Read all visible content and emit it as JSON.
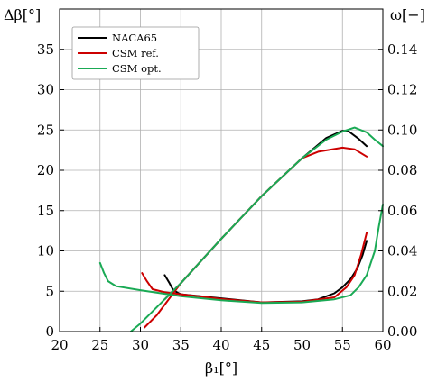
{
  "chart_data": {
    "type": "line",
    "xlabel": "β₁[°]",
    "ylabel_left": "Δβ[°]",
    "ylabel_right": "ω[−]",
    "xlim": [
      20,
      60
    ],
    "ylim_left": [
      0,
      40
    ],
    "ylim_right": [
      0,
      0.16
    ],
    "x_ticks": [
      "20",
      "25",
      "30",
      "35",
      "40",
      "45",
      "50",
      "55",
      "60"
    ],
    "y_ticks_left": [
      "0",
      "5",
      "10",
      "15",
      "20",
      "25",
      "30",
      "35"
    ],
    "y_ticks_right": [
      "0.00",
      "0.02",
      "0.04",
      "0.06",
      "0.08",
      "0.10",
      "0.12",
      "0.14"
    ],
    "grid": true,
    "legend_position": "top-left",
    "series": [
      {
        "name": "NACA65",
        "color": "#000000",
        "deflection": {
          "x": [
            33.0,
            35.0,
            40.0,
            45.0,
            50.0,
            53.0,
            55.0,
            55.8,
            57.0,
            58.0
          ],
          "y": [
            4.0,
            6.0,
            11.5,
            16.8,
            21.5,
            24.0,
            24.9,
            24.8,
            23.9,
            23.0
          ]
        },
        "loss": {
          "x": [
            33.0,
            33.6,
            34.0,
            34.5,
            35.0,
            40.0,
            45.0,
            50.0,
            52.0,
            54.0,
            55.0,
            56.0,
            56.8,
            57.5,
            58.0
          ],
          "y": [
            0.028,
            0.024,
            0.021,
            0.0195,
            0.0185,
            0.0165,
            0.0145,
            0.015,
            0.016,
            0.019,
            0.022,
            0.026,
            0.031,
            0.038,
            0.045
          ]
        }
      },
      {
        "name": "CSM ref.",
        "color": "#cc0000",
        "deflection": {
          "x": [
            30.5,
            32.0,
            35.0,
            40.0,
            45.0,
            50.0,
            52.0,
            55.0,
            56.5,
            58.0
          ],
          "y": [
            0.5,
            2.0,
            6.0,
            11.5,
            16.8,
            21.5,
            22.3,
            22.8,
            22.6,
            21.7
          ]
        },
        "loss": {
          "x": [
            30.2,
            30.8,
            31.5,
            33.0,
            35.0,
            40.0,
            45.0,
            50.0,
            54.0,
            55.5,
            56.5,
            57.3,
            58.0
          ],
          "y": [
            0.029,
            0.025,
            0.021,
            0.0195,
            0.0185,
            0.0162,
            0.0145,
            0.0148,
            0.017,
            0.022,
            0.028,
            0.038,
            0.049
          ]
        }
      },
      {
        "name": "CSM opt.",
        "color": "#1aaa55",
        "deflection": {
          "x": [
            28.8,
            30.0,
            35.0,
            40.0,
            45.0,
            50.0,
            53.0,
            55.0,
            56.5,
            58.0,
            59.0,
            60.0
          ],
          "y": [
            0.0,
            1.0,
            6.0,
            11.5,
            16.8,
            21.5,
            23.8,
            24.8,
            25.3,
            24.7,
            23.8,
            23.0
          ]
        },
        "loss": {
          "x": [
            25.0,
            25.5,
            26.0,
            27.0,
            30.0,
            35.0,
            40.0,
            45.0,
            50.0,
            54.0,
            56.0,
            57.0,
            58.0,
            59.0,
            59.5,
            60.0
          ],
          "y": [
            0.034,
            0.029,
            0.025,
            0.0225,
            0.0205,
            0.0175,
            0.0155,
            0.0142,
            0.0145,
            0.016,
            0.018,
            0.022,
            0.028,
            0.04,
            0.052,
            0.063
          ]
        }
      }
    ]
  }
}
